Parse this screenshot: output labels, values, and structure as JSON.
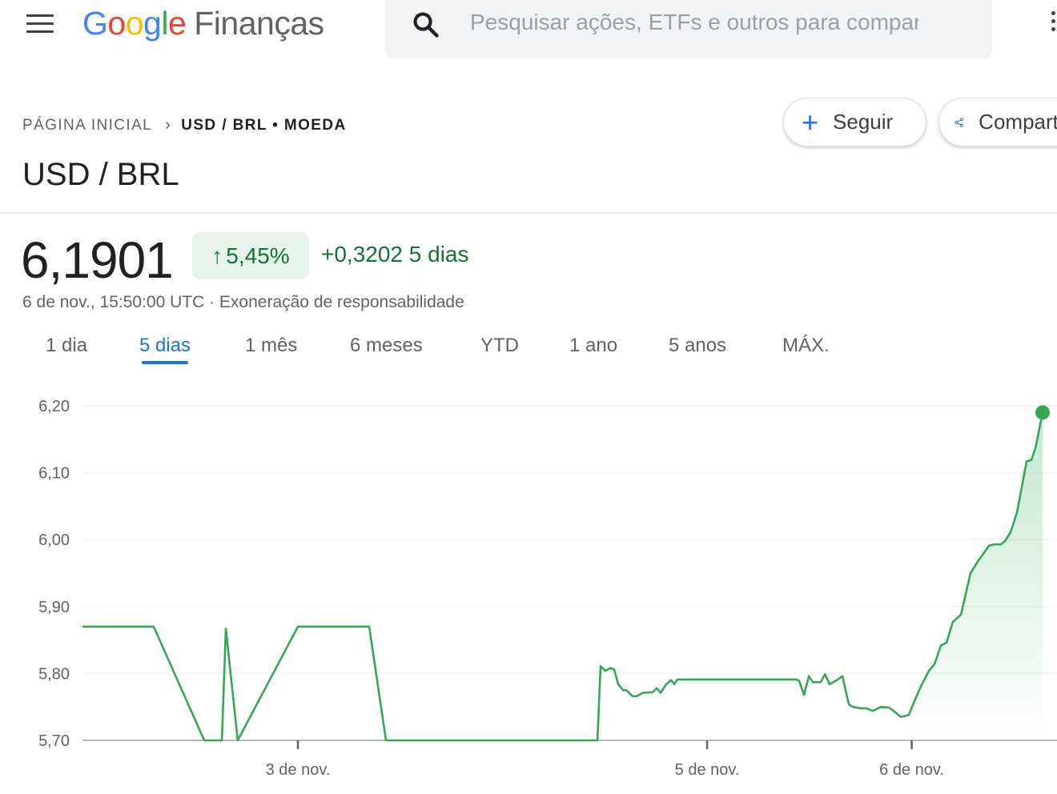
{
  "header": {
    "logo_google": "Google",
    "logo_product": "Finanças",
    "search_placeholder": "Pesquisar ações, ETFs e outros para comparar"
  },
  "breadcrumb": {
    "home": "PÁGINA INICIAL",
    "current": "USD / BRL • MOEDA"
  },
  "actions": {
    "follow_label": "Seguir",
    "share_label": "Compartilhar"
  },
  "title": "USD / BRL",
  "quote": {
    "price": "6,1901",
    "percent_change": "5,45%",
    "direction": "up",
    "abs_change": "+0,3202 5 dias",
    "timestamp": "6 de nov., 15:50:00 UTC · Exoneração de responsabilidade"
  },
  "tabs": [
    {
      "label": "1 dia",
      "active": false
    },
    {
      "label": "5 dias",
      "active": true
    },
    {
      "label": "1 mês",
      "active": false
    },
    {
      "label": "6 meses",
      "active": false
    },
    {
      "label": "YTD",
      "active": false
    },
    {
      "label": "1 ano",
      "active": false
    },
    {
      "label": "5 anos",
      "active": false
    },
    {
      "label": "MÁX.",
      "active": false
    }
  ],
  "colors": {
    "line": "#34a853",
    "positive_text": "#137333",
    "positive_bg": "#e6f4ea",
    "accent": "#1a73e8"
  },
  "chart_data": {
    "type": "area",
    "ylim": [
      5.7,
      6.2
    ],
    "y_ticks": [
      {
        "value": 6.2,
        "label": "6,20"
      },
      {
        "value": 6.1,
        "label": "6,10"
      },
      {
        "value": 6.0,
        "label": "6,00"
      },
      {
        "value": 5.9,
        "label": "5,90"
      },
      {
        "value": 5.8,
        "label": "5,80"
      },
      {
        "value": 5.7,
        "label": "5,70"
      }
    ],
    "x_ticks": [
      {
        "time": "3 nov 00:00",
        "label": "3 de nov."
      },
      {
        "time": "5 nov 00:00",
        "label": "5 de nov."
      },
      {
        "time": "6 nov 00:00",
        "label": "6 de nov."
      }
    ],
    "grid": true,
    "end_marker": true,
    "points": [
      [
        "1 nov 22:44",
        5.87
      ],
      [
        "2 nov 07:05",
        5.87
      ],
      [
        "2 nov 13:01",
        5.7
      ],
      [
        "2 nov 15:05",
        5.7
      ],
      [
        "2 nov 15:33",
        5.867
      ],
      [
        "2 nov 16:57",
        5.7
      ],
      [
        "3 nov 00:00",
        5.87
      ],
      [
        "3 nov 08:22",
        5.87
      ],
      [
        "3 nov 10:20",
        5.7
      ],
      [
        "4 nov 11:08",
        5.7
      ],
      [
        "4 nov 11:30",
        5.811
      ],
      [
        "4 nov 12:04",
        5.804
      ],
      [
        "4 nov 12:38",
        5.808
      ],
      [
        "4 nov 13:06",
        5.806
      ],
      [
        "4 nov 13:34",
        5.784
      ],
      [
        "4 nov 14:08",
        5.775
      ],
      [
        "4 nov 14:31",
        5.775
      ],
      [
        "4 nov 15:16",
        5.766
      ],
      [
        "4 nov 15:44",
        5.766
      ],
      [
        "4 nov 16:29",
        5.771
      ],
      [
        "4 nov 17:37",
        5.772
      ],
      [
        "4 nov 18:05",
        5.778
      ],
      [
        "4 nov 18:33",
        5.771
      ],
      [
        "4 nov 19:13",
        5.784
      ],
      [
        "4 nov 19:46",
        5.79
      ],
      [
        "4 nov 20:09",
        5.784
      ],
      [
        "4 nov 20:31",
        5.791
      ],
      [
        "5 nov 10:31",
        5.791
      ],
      [
        "5 nov 10:48",
        5.789
      ],
      [
        "5 nov 11:22",
        5.768
      ],
      [
        "5 nov 11:56",
        5.796
      ],
      [
        "5 nov 12:24",
        5.787
      ],
      [
        "5 nov 13:20",
        5.787
      ],
      [
        "5 nov 13:49",
        5.799
      ],
      [
        "5 nov 14:22",
        5.784
      ],
      [
        "5 nov 15:13",
        5.79
      ],
      [
        "5 nov 15:52",
        5.796
      ],
      [
        "5 nov 16:37",
        5.754
      ],
      [
        "5 nov 17:05",
        5.75
      ],
      [
        "5 nov 18:02",
        5.748
      ],
      [
        "5 nov 18:41",
        5.748
      ],
      [
        "5 nov 19:26",
        5.744
      ],
      [
        "5 nov 20:23",
        5.75
      ],
      [
        "5 nov 21:19",
        5.749
      ],
      [
        "5 nov 21:53",
        5.744
      ],
      [
        "5 nov 22:44",
        5.735
      ],
      [
        "5 nov 23:40",
        5.738
      ],
      [
        "6 nov 00:20",
        5.759
      ],
      [
        "6 nov 01:05",
        5.781
      ],
      [
        "6 nov 02:01",
        5.804
      ],
      [
        "6 nov 02:41",
        5.814
      ],
      [
        "6 nov 03:26",
        5.842
      ],
      [
        "6 nov 04:05",
        5.846
      ],
      [
        "6 nov 04:50",
        5.877
      ],
      [
        "6 nov 05:47",
        5.888
      ],
      [
        "6 nov 06:54",
        5.95
      ],
      [
        "6 nov 07:50",
        5.969
      ],
      [
        "6 nov 09:04",
        5.991
      ],
      [
        "6 nov 09:43",
        5.993
      ],
      [
        "6 nov 10:28",
        5.993
      ],
      [
        "6 nov 10:56",
        5.998
      ],
      [
        "6 nov 11:36",
        6.011
      ],
      [
        "6 nov 12:21",
        6.041
      ],
      [
        "6 nov 13:29",
        6.117
      ],
      [
        "6 nov 14:02",
        6.119
      ],
      [
        "6 nov 14:31",
        6.137
      ],
      [
        "6 nov 15:21",
        6.19
      ]
    ]
  }
}
